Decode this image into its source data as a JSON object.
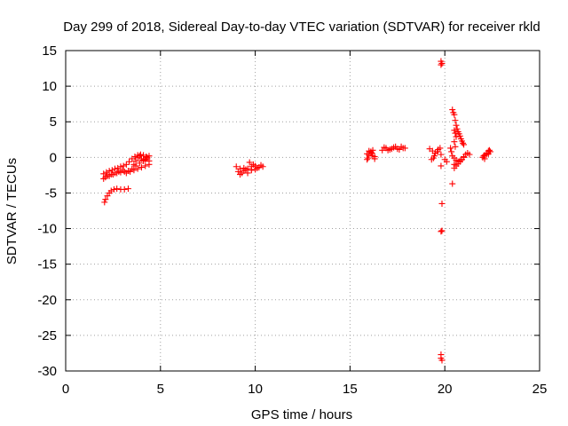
{
  "chart_data": {
    "type": "scatter",
    "title": "Day 299 of 2018, Sidereal Day-to-day VTEC variation (SDTVAR) for receiver rkld",
    "xlabel": "GPS time / hours",
    "ylabel": "SDTVAR / TECUs",
    "xlim": [
      0,
      25
    ],
    "ylim": [
      -30,
      15
    ],
    "xticks": [
      0,
      5,
      10,
      15,
      20,
      25
    ],
    "xtick_labels": [
      "0",
      "5",
      "10",
      "15",
      "20",
      "25"
    ],
    "yticks": [
      15,
      10,
      5,
      0,
      -5,
      -10,
      -15,
      -20,
      -25,
      -30
    ],
    "ytick_labels": [
      "15",
      "10",
      "5",
      "0",
      "-5",
      "-10",
      "-15",
      "-20",
      "-25",
      "-30"
    ],
    "grid": true,
    "marker": "+",
    "marker_color": "#ff0000",
    "series": [
      {
        "name": "rkld",
        "x": [
          2.0,
          2.15,
          2.3,
          2.45,
          2.6,
          2.75,
          2.9,
          3.05,
          3.2,
          3.35,
          3.5,
          3.65,
          3.8,
          3.95,
          4.1,
          4.25,
          4.4,
          2.0,
          2.1,
          2.3,
          2.5,
          2.7,
          2.9,
          3.1,
          3.3,
          3.5,
          3.7,
          3.9,
          4.1,
          4.3,
          4.4,
          2.2,
          2.4,
          2.6,
          2.8,
          3.0,
          3.2,
          3.4,
          3.6,
          3.8,
          4.0,
          4.2,
          4.4,
          3.6,
          3.7,
          3.8,
          3.9,
          4.0,
          4.1,
          4.2,
          4.3,
          2.05,
          2.1,
          2.2,
          2.3,
          2.4,
          2.55,
          2.7,
          2.9,
          3.1,
          3.3,
          9.0,
          9.2,
          9.4,
          9.6,
          9.8,
          10.0,
          10.2,
          10.4,
          9.1,
          9.3,
          9.5,
          9.7,
          9.9,
          10.1,
          10.3,
          9.2,
          9.4,
          9.6,
          9.8,
          10.0,
          15.9,
          16.0,
          16.1,
          16.2,
          16.3,
          15.9,
          16.0,
          16.1,
          16.2,
          16.3,
          15.95,
          16.15,
          16.7,
          16.9,
          17.1,
          17.3,
          17.5,
          17.7,
          17.9,
          16.8,
          17.0,
          17.2,
          17.4,
          17.6,
          17.8,
          19.2,
          19.35,
          19.5,
          19.65,
          19.8,
          19.3,
          19.45,
          19.6,
          19.75,
          19.4,
          19.8,
          19.8,
          19.85,
          19.8,
          19.85,
          19.85,
          19.8,
          19.8,
          19.85,
          19.8,
          20.0,
          20.1,
          20.4,
          20.45,
          20.5,
          20.55,
          20.6,
          20.65,
          20.7,
          20.75,
          20.8,
          20.85,
          20.9,
          20.95,
          21.0,
          20.5,
          20.55,
          20.6,
          20.5,
          20.55,
          20.3,
          20.35,
          20.4,
          20.5,
          20.6,
          20.7,
          20.8,
          20.9,
          21.0,
          20.5,
          20.6,
          20.7,
          20.8,
          20.9,
          21.0,
          21.1,
          21.2,
          21.3,
          20.4,
          20.5,
          22.0,
          22.1,
          22.2,
          22.3,
          22.4,
          22.05,
          22.2,
          22.35,
          22.1,
          22.3
        ],
        "y": [
          -2.3,
          -2.1,
          -1.9,
          -1.8,
          -1.6,
          -1.5,
          -1.3,
          -1.2,
          -1.0,
          -0.6,
          -0.2,
          0.1,
          0.3,
          0.4,
          0.3,
          0.1,
          0.2,
          -3.0,
          -2.8,
          -2.6,
          -2.4,
          -2.2,
          -2.1,
          -2.0,
          -1.9,
          -1.6,
          -1.2,
          -0.8,
          -0.4,
          -0.2,
          -0.5,
          -2.6,
          -2.4,
          -2.2,
          -2.0,
          -1.8,
          -2.2,
          -2.0,
          -1.8,
          -1.6,
          -1.4,
          -1.2,
          -1.0,
          -1.0,
          -0.5,
          0.0,
          0.2,
          -0.2,
          -0.5,
          -0.3,
          0.0,
          -6.3,
          -5.9,
          -5.4,
          -5.0,
          -4.7,
          -4.5,
          -4.4,
          -4.5,
          -4.5,
          -4.4,
          -1.3,
          -1.6,
          -1.9,
          -1.6,
          -1.3,
          -1.2,
          -1.4,
          -1.3,
          -2.0,
          -2.2,
          -1.7,
          -0.7,
          -1.0,
          -1.5,
          -1.1,
          -2.4,
          -1.5,
          -2.2,
          -1.8,
          -1.7,
          0.5,
          0.9,
          0.7,
          0.2,
          -0.2,
          -0.3,
          0.3,
          0.8,
          1.0,
          0.1,
          -0.1,
          0.6,
          1.0,
          1.3,
          1.1,
          1.4,
          1.2,
          1.5,
          1.3,
          1.4,
          1.0,
          1.2,
          1.5,
          1.1,
          1.3,
          1.2,
          0.9,
          0.6,
          1.1,
          0.4,
          -0.3,
          0.2,
          0.8,
          1.3,
          -0.1,
          13.5,
          13.0,
          13.2,
          -1.2,
          -6.5,
          -10.3,
          -27.7,
          -28.2,
          -28.5,
          -10.4,
          -0.3,
          -0.6,
          6.7,
          6.3,
          6.0,
          5.2,
          4.5,
          4.0,
          3.6,
          3.3,
          3.0,
          2.6,
          2.3,
          2.0,
          1.8,
          3.8,
          3.4,
          2.9,
          2.2,
          1.5,
          1.3,
          0.8,
          0.2,
          -0.1,
          -0.4,
          -0.6,
          -0.5,
          -0.3,
          0.0,
          -1.5,
          -1.2,
          -0.9,
          -0.6,
          -0.3,
          0.1,
          0.4,
          0.6,
          0.4,
          -3.7,
          -1.0,
          0.0,
          0.3,
          0.6,
          0.9,
          0.8,
          0.2,
          0.4,
          1.0,
          -0.2,
          0.5
        ]
      }
    ]
  }
}
